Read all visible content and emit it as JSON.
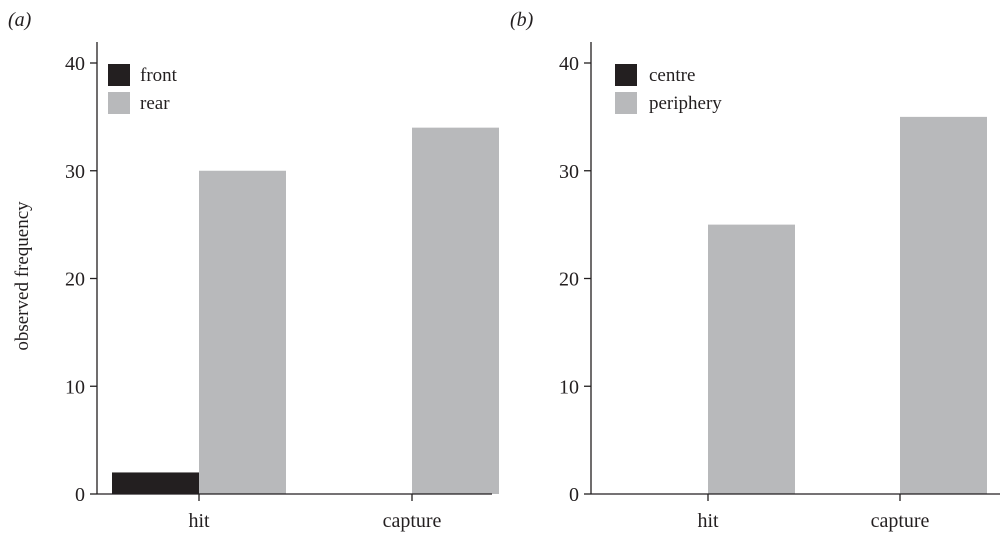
{
  "chart_data": [
    {
      "type": "bar",
      "panel_label": "(a)",
      "categories": [
        "hit",
        "capture"
      ],
      "series": [
        {
          "name": "front",
          "values": [
            2,
            0
          ],
          "color": "#231f20"
        },
        {
          "name": "rear",
          "values": [
            30,
            34
          ],
          "color": "#b8b9bb"
        }
      ],
      "ylabel": "observed frequency",
      "xlabel": "",
      "ylim": [
        0,
        40
      ],
      "yticks": [
        0,
        10,
        20,
        30,
        40
      ],
      "grid": false,
      "legend_position": "top-left"
    },
    {
      "type": "bar",
      "panel_label": "(b)",
      "categories": [
        "hit",
        "capture"
      ],
      "series": [
        {
          "name": "centre",
          "values": [
            0,
            0
          ],
          "color": "#231f20"
        },
        {
          "name": "periphery",
          "values": [
            25,
            35
          ],
          "color": "#b8b9bb"
        }
      ],
      "ylabel": "",
      "xlabel": "",
      "ylim": [
        0,
        40
      ],
      "yticks": [
        0,
        10,
        20,
        30,
        40
      ],
      "grid": false,
      "legend_position": "top-left"
    }
  ]
}
